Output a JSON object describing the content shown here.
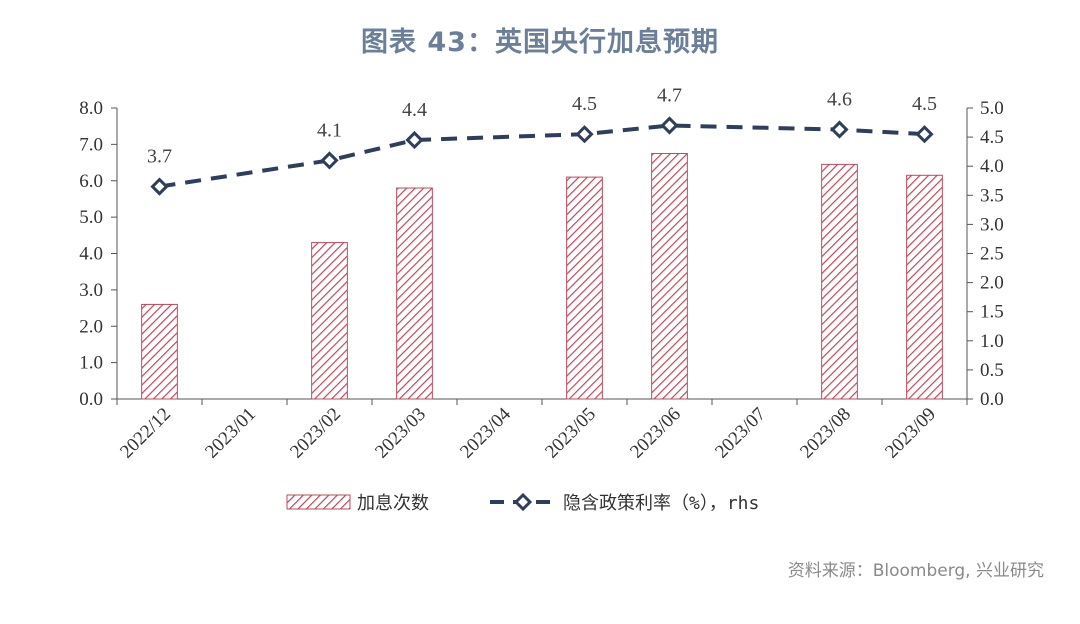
{
  "title": "图表 43：英国央行加息预期",
  "source": "资料来源：Bloomberg, 兴业研究",
  "colors": {
    "bar": "#c0485a",
    "line": "#2e3e5c",
    "title": "#6b7f99"
  },
  "chart_data": {
    "type": "bar+line",
    "categories": [
      "2022/12",
      "2023/01",
      "2023/02",
      "2023/03",
      "2023/04",
      "2023/05",
      "2023/06",
      "2023/07",
      "2023/08",
      "2023/09"
    ],
    "left_axis": {
      "ylim": [
        0,
        8
      ],
      "ticks": [
        "0.0",
        "1.0",
        "2.0",
        "3.0",
        "4.0",
        "5.0",
        "6.0",
        "7.0",
        "8.0"
      ]
    },
    "right_axis": {
      "ylim": [
        0,
        5
      ],
      "ticks": [
        "0.0",
        "0.5",
        "1.0",
        "1.5",
        "2.0",
        "2.5",
        "3.0",
        "3.5",
        "4.0",
        "4.5",
        "5.0"
      ]
    },
    "series": [
      {
        "name": "加息次数",
        "type": "bar",
        "axis": "left",
        "values": [
          2.6,
          null,
          4.3,
          5.8,
          null,
          6.1,
          6.75,
          null,
          6.45,
          6.15
        ]
      },
      {
        "name": "隐含政策利率（%），rhs",
        "type": "line",
        "axis": "right",
        "values": [
          3.65,
          null,
          4.1,
          4.45,
          null,
          4.55,
          4.7,
          null,
          4.63,
          4.55
        ],
        "labels": [
          "3.7",
          null,
          "4.1",
          "4.4",
          null,
          "4.5",
          "4.7",
          null,
          "4.6",
          "4.5"
        ]
      }
    ],
    "legend_position": "bottom"
  }
}
